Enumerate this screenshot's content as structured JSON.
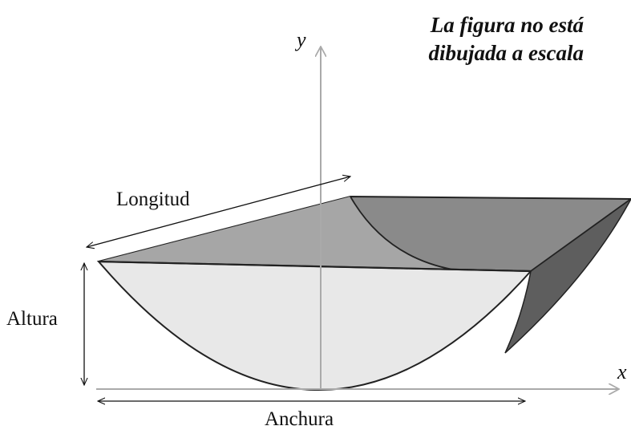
{
  "axes": {
    "y": "y",
    "x": "x"
  },
  "caption": [
    "La figura no está",
    "dibujada a escala"
  ],
  "labels": {
    "length": "Longitud",
    "height": "Altura",
    "width": "Anchura"
  }
}
